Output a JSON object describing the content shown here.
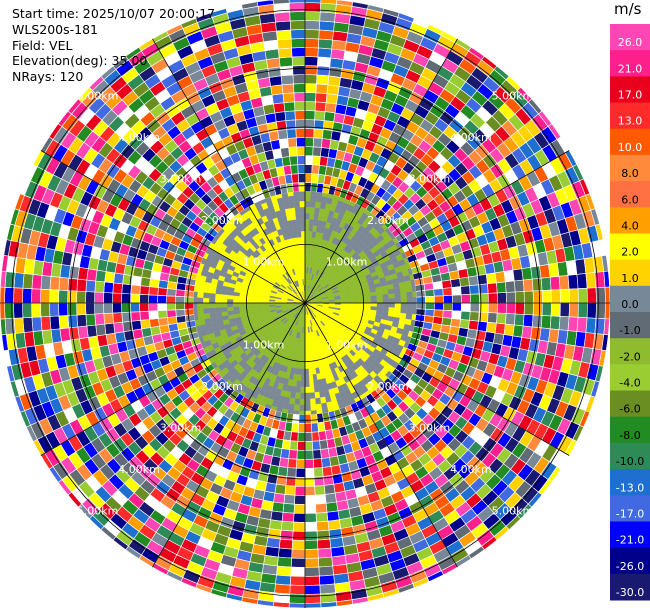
{
  "header": {
    "start_time": "Start time: 2025/10/07 20:00:17",
    "instrument": "WLS200s-181",
    "field": "Field: VEL",
    "elevation": "Elevation(deg): 35.00",
    "nrays": "NRays: 120"
  },
  "colorbar": {
    "unit": "m/s",
    "ticks": [
      "26.0",
      "21.0",
      "17.0",
      "13.0",
      "10.0",
      "8.0",
      "6.0",
      "4.0",
      "2.0",
      "1.0",
      "0.0",
      "-1.0",
      "-2.0",
      "-4.0",
      "-6.0",
      "-8.0",
      "-10.0",
      "-13.0",
      "-17.0",
      "-21.0",
      "-26.0",
      "-30.0"
    ],
    "colors": [
      "#ff46b4",
      "#ff1f8c",
      "#e8001c",
      "#ff2a2a",
      "#ff5a00",
      "#ff8a3c",
      "#ff7043",
      "#ffa000",
      "#ffff00",
      "#ffd200",
      "#778899",
      "#606b76",
      "#8fbc2f",
      "#9acd32",
      "#6b8e23",
      "#228b22",
      "#2e8b57",
      "#1e6fd0",
      "#4169e1",
      "#0000ff",
      "#00008b",
      "#191970"
    ]
  },
  "chart_data": {
    "type": "ppi",
    "field": "VEL",
    "unit": "m/s",
    "nrays": 120,
    "elevation_deg": 35.0,
    "range_rings_km": [
      1.0,
      2.0,
      3.0,
      4.0,
      5.0
    ],
    "ring_labels": [
      "1.00km",
      "2.00km",
      "3.00km",
      "4.00km",
      "5.00km"
    ],
    "max_range_km": 5.2,
    "valid_data_range_km": 1.9,
    "noise_beyond_km": 1.9,
    "color_range": [
      -30.0,
      26.0
    ],
    "near_field_sectors": [
      {
        "sector": "north-west",
        "azimuth_deg": [
          270,
          360
        ],
        "velocity_ms": 3
      },
      {
        "sector": "north-east",
        "azimuth_deg": [
          0,
          90
        ],
        "velocity_ms": -1.5
      },
      {
        "sector": "south-east",
        "azimuth_deg": [
          90,
          180
        ],
        "velocity_ms": 3
      },
      {
        "sector": "south-west",
        "azimuth_deg": [
          180,
          270
        ],
        "velocity_ms": -1.5
      }
    ]
  }
}
